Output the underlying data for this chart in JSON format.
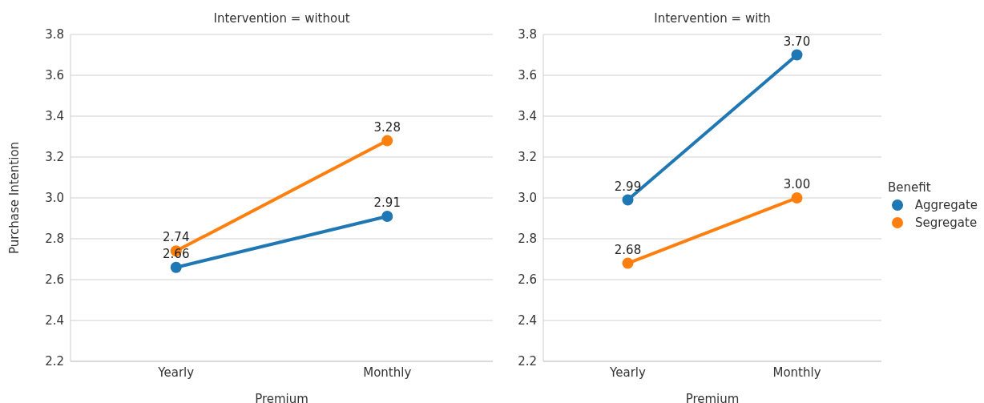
{
  "chart_data": [
    {
      "type": "line",
      "title": "Intervention = without",
      "xlabel": "Premium",
      "ylabel": "Purchase Intention",
      "categories": [
        "Yearly",
        "Monthly"
      ],
      "series": [
        {
          "color": "#1f77b4",
          "values": [
            2.66,
            2.91
          ],
          "value_labels": [
            "2.66",
            "2.91"
          ]
        },
        {
          "color": "#ff7f0e",
          "values": [
            2.74,
            3.28
          ],
          "value_labels": [
            "2.74",
            "3.28"
          ]
        }
      ],
      "ylim": [
        2.2,
        3.8
      ],
      "yticks": [
        2.2,
        2.4,
        2.6,
        2.8,
        {
          "value": 3,
          "label": "3.0"
        },
        3.2,
        3.4,
        3.6,
        3.8
      ],
      "grid": "y",
      "marker": "circle",
      "legend": false
    },
    {
      "type": "line",
      "title": "Intervention = with",
      "xlabel": "Premium",
      "legend_title": "Benefit",
      "categories": [
        "Yearly",
        "Monthly"
      ],
      "series": [
        {
          "name": "Aggregate",
          "color": "#1f77b4",
          "values": [
            2.99,
            3.7
          ],
          "value_labels": [
            "2.99",
            "3.70"
          ]
        },
        {
          "name": "Segregate",
          "color": "#ff7f0e",
          "values": [
            2.68,
            3.0
          ],
          "value_labels": [
            "2.68",
            "3.00"
          ]
        }
      ],
      "ylim": [
        2.2,
        3.8
      ],
      "yticks": [
        2.2,
        2.4,
        2.6,
        2.8,
        {
          "value": 3,
          "label": "3.0"
        },
        3.2,
        3.4,
        3.6,
        3.8
      ],
      "grid": "y",
      "marker": "circle",
      "legend": "right"
    }
  ]
}
